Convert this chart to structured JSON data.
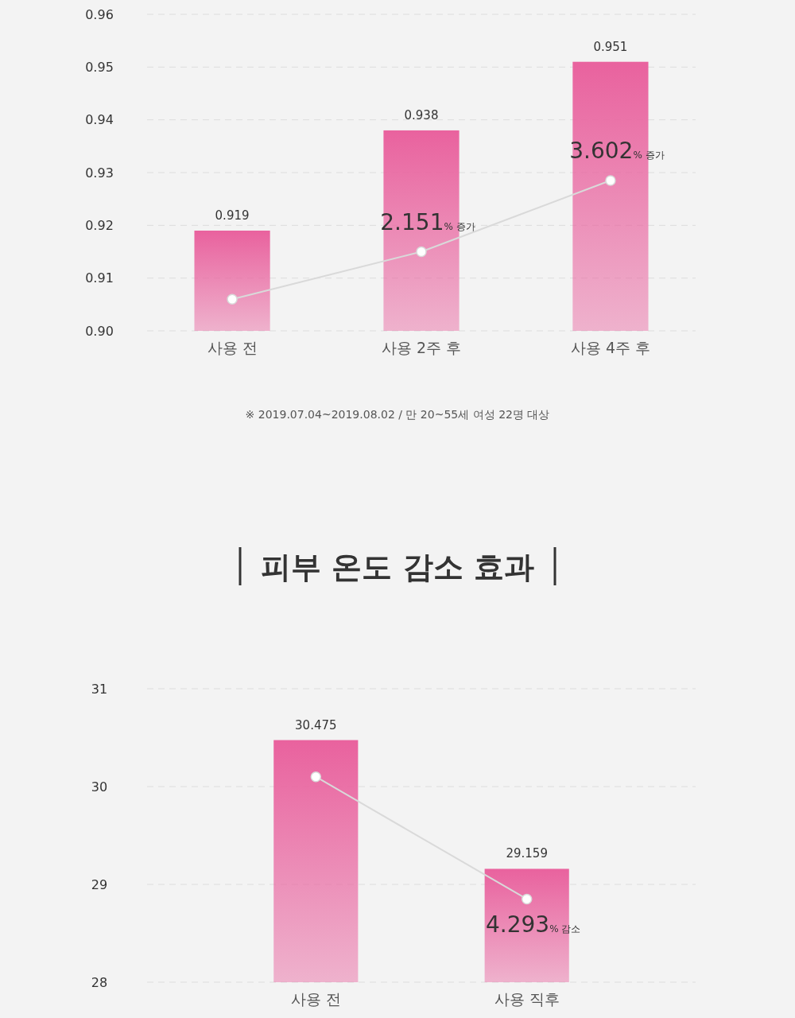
{
  "chart_data": [
    {
      "type": "bar",
      "categories": [
        "사용 전",
        "사용 2주 후",
        "사용 4주 후"
      ],
      "ylim": [
        0.9,
        0.96
      ],
      "yticks": [
        {
          "value": 0.9,
          "label": "0.90"
        },
        {
          "value": 0.91,
          "label": "0.91"
        },
        {
          "value": 0.92,
          "label": "0.92"
        },
        {
          "value": 0.93,
          "label": "0.93"
        },
        {
          "value": 0.94,
          "label": "0.94"
        },
        {
          "value": 0.95,
          "label": "0.95"
        },
        {
          "value": 0.96,
          "label": "0.96"
        }
      ],
      "grid": "y",
      "series": [
        {
          "color": "#e9629e",
          "values": [
            0.919,
            0.938,
            0.951
          ],
          "value_labels": [
            "0.919",
            "0.938",
            "0.951"
          ]
        },
        {
          "type": "line",
          "color": "#d9d9d9",
          "marker": "circle",
          "values": [
            0.906,
            0.915,
            0.9285
          ]
        }
      ],
      "annotations": [
        {
          "text": "2.151% 증가",
          "x": "사용 2주 후",
          "y": 0.915
        },
        {
          "text": "3.602% 증가",
          "x": "사용 4주 후",
          "y": 0.9285
        },
        "※ 2019.07.04~2019.08.02 / 만 20~55세 여성 22명 대상"
      ]
    },
    {
      "type": "bar",
      "title": "피부 온도 감소 효과",
      "categories": [
        "사용 전",
        "사용 직후"
      ],
      "ylim": [
        28,
        31
      ],
      "yticks": [
        28,
        29,
        30,
        31
      ],
      "grid": "y",
      "series": [
        {
          "color": "#e9629e",
          "values": [
            30.475,
            29.159
          ],
          "value_labels": [
            "30.475",
            "29.159"
          ]
        },
        {
          "type": "line",
          "color": "#d9d9d9",
          "marker": "circle",
          "values": [
            30.1,
            28.85
          ]
        }
      ],
      "annotations": [
        {
          "text": "4.293% 감소",
          "x": "사용 직후",
          "y": 28.85
        }
      ]
    }
  ]
}
